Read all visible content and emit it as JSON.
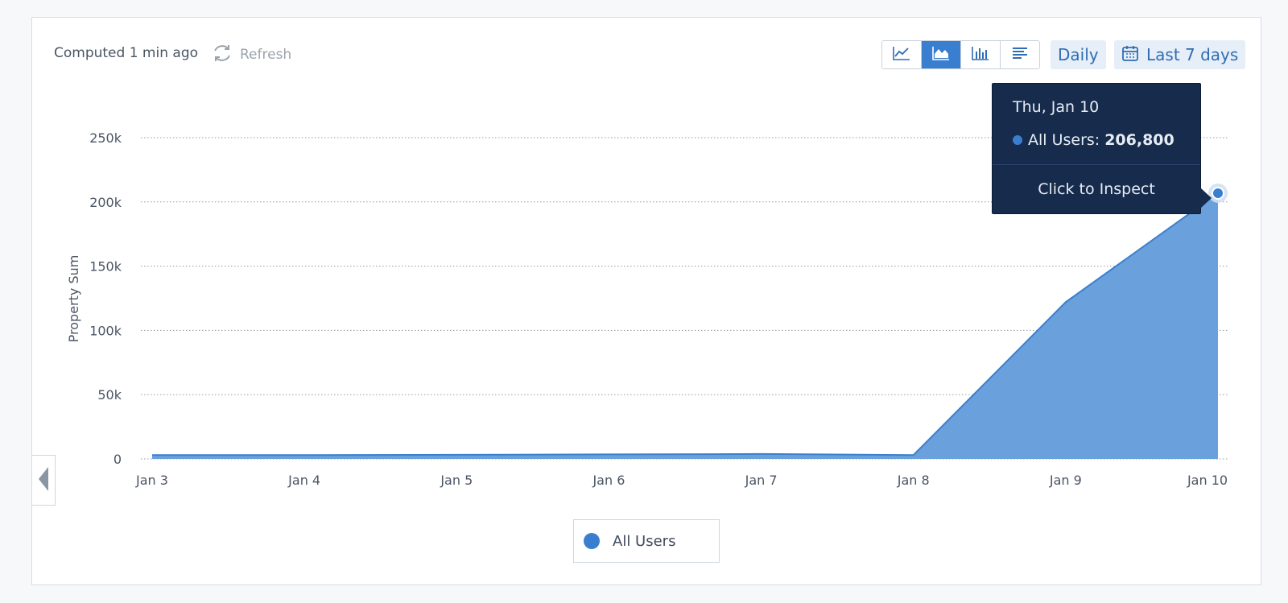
{
  "header": {
    "computed_text": "Computed 1 min ago",
    "refresh_label": "Refresh"
  },
  "toolbar": {
    "chart_types": [
      {
        "icon": "line-chart-icon",
        "active": false
      },
      {
        "icon": "area-chart-icon",
        "active": true
      },
      {
        "icon": "bar-chart-icon",
        "active": false
      },
      {
        "icon": "table-list-icon",
        "active": false
      }
    ],
    "interval_label": "Daily",
    "range_label": "Last 7 days"
  },
  "tooltip": {
    "date": "Thu, Jan 10",
    "series_label": "All Users:",
    "value_text": "206,800",
    "action_label": "Click to Inspect"
  },
  "legend": {
    "label": "All Users"
  },
  "colors": {
    "accent": "#3a7fcf",
    "area_fill": "#6aa1dc",
    "tooltip_bg": "#172b4d"
  },
  "chart_data": {
    "type": "area",
    "x": [
      "Jan 3",
      "Jan 4",
      "Jan 5",
      "Jan 6",
      "Jan 7",
      "Jan 8",
      "Jan 9",
      "Jan 10"
    ],
    "series": [
      {
        "name": "All Users",
        "values": [
          3000,
          3000,
          3200,
          3500,
          3800,
          3000,
          122000,
          206800
        ]
      }
    ],
    "ylabel": "Property Sum",
    "ylim": [
      0,
      250000
    ],
    "yticks": [
      0,
      50000,
      100000,
      150000,
      200000,
      250000
    ],
    "ytick_labels": [
      "0",
      "50k",
      "100k",
      "150k",
      "200k",
      "250k"
    ],
    "grid": true,
    "grid_style": "dotted",
    "highlighted_point": "Jan 10"
  }
}
